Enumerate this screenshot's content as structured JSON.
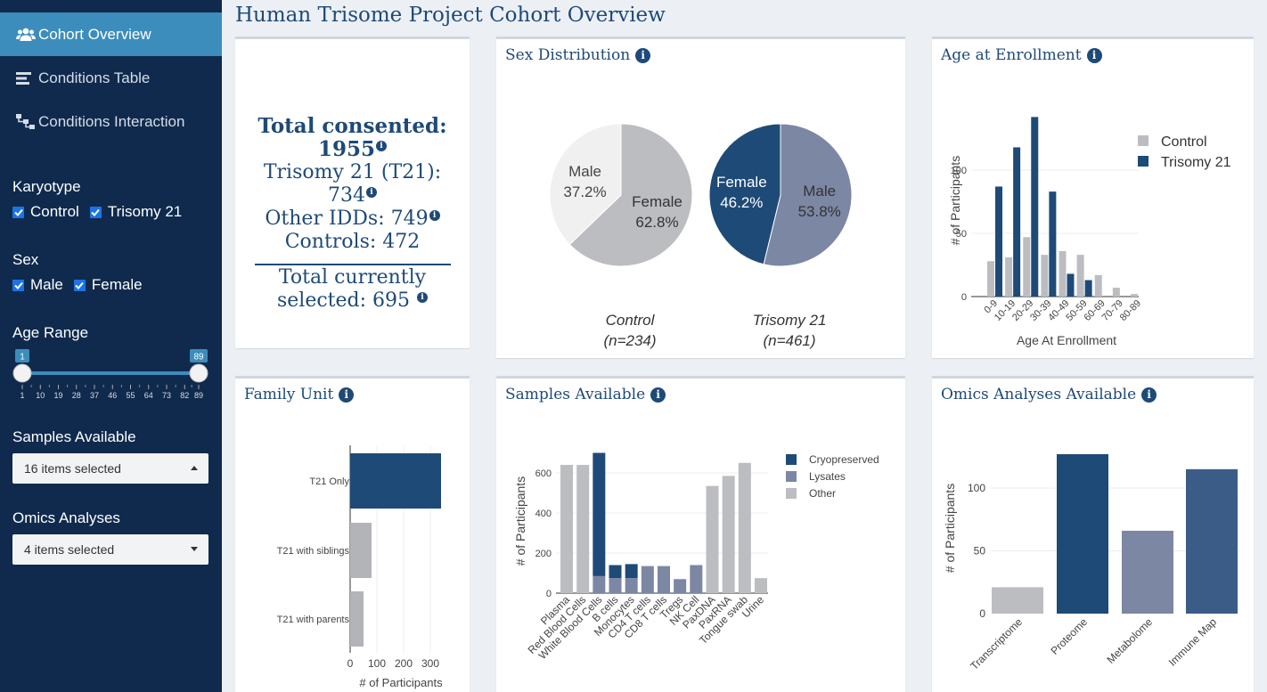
{
  "title": "Human Trisome Project Cohort Overview",
  "colors": {
    "navy": "#1e4a77",
    "slate": "#7b87a3",
    "light_gray": "#bcbdc1",
    "pale": "#f0f0f0",
    "sidebar": "#0f2a4d",
    "active": "#3c8dbc"
  },
  "sidebar": {
    "nav": [
      {
        "label": "Cohort Overview",
        "icon": "users-icon",
        "active": true
      },
      {
        "label": "Conditions Table",
        "icon": "table-icon",
        "active": false
      },
      {
        "label": "Conditions Interaction",
        "icon": "sitemap-icon",
        "active": false
      }
    ],
    "karyotype": {
      "title": "Karyotype",
      "options": [
        {
          "label": "Control",
          "checked": true
        },
        {
          "label": "Trisomy 21",
          "checked": true
        }
      ]
    },
    "sex": {
      "title": "Sex",
      "options": [
        {
          "label": "Male",
          "checked": true
        },
        {
          "label": "Female",
          "checked": true
        }
      ]
    },
    "age_range": {
      "title": "Age Range",
      "min": 1,
      "max": 89,
      "low": 1,
      "high": 89,
      "ticks": [
        "1",
        "10",
        "19",
        "28",
        "37",
        "46",
        "55",
        "64",
        "73",
        "82",
        "89"
      ]
    },
    "samples": {
      "title": "Samples Available",
      "value": "16 items selected"
    },
    "omics": {
      "title": "Omics Analyses",
      "value": "4 items selected"
    }
  },
  "summary": {
    "total_label": "Total consented:",
    "total_value": "1955",
    "t21": "Trisomy 21 (T21):",
    "t21_value": "734",
    "other": "Other IDDs: 749",
    "controls": "Controls: 472",
    "selected_label": "Total currently",
    "selected_value": "selected: 695"
  },
  "chart_data": [
    {
      "type": "pie",
      "title": "Sex Distribution",
      "pies": [
        {
          "caption": "Control",
          "n": "(n=234)",
          "slices": [
            {
              "label": "Female",
              "value": 62.8,
              "display": "62.8%"
            },
            {
              "label": "Male",
              "value": 37.2,
              "display": "37.2%"
            }
          ]
        },
        {
          "caption": "Trisomy 21",
          "n": "(n=461)",
          "slices": [
            {
              "label": "Male",
              "value": 53.8,
              "display": "53.8%"
            },
            {
              "label": "Female",
              "value": 46.2,
              "display": "46.2%"
            }
          ]
        }
      ]
    },
    {
      "type": "bar",
      "title": "Age at Enrollment",
      "categories": [
        "0-9",
        "10-19",
        "20-29",
        "30-39",
        "40-49",
        "50-59",
        "60-69",
        "70-79",
        "80-89"
      ],
      "series": [
        {
          "name": "Control",
          "values": [
            28,
            31,
            47,
            33,
            36,
            33,
            17,
            7,
            2
          ]
        },
        {
          "name": "Trisomy 21",
          "values": [
            87,
            118,
            142,
            83,
            18,
            13,
            0,
            0,
            0
          ]
        }
      ],
      "xlabel": "Age At Enrollment",
      "ylabel": "# of Participants",
      "yticks": [
        0,
        50,
        100
      ],
      "ylim": [
        0,
        150
      ]
    },
    {
      "type": "bar",
      "orientation": "horizontal",
      "title": "Family Unit",
      "categories": [
        "T21 Only",
        "T21 with siblings",
        "T21 with parents"
      ],
      "values": [
        340,
        80,
        50
      ],
      "xlabel": "# of Participants",
      "xticks": [
        0,
        100,
        200,
        300
      ],
      "xlim": [
        0,
        370
      ]
    },
    {
      "type": "bar",
      "stacked": true,
      "title": "Samples Available",
      "categories": [
        "Plasma",
        "Red Blood Cells",
        "White Blood Cells",
        "B cells",
        "Monocytes",
        "CD4 T cells",
        "CD8 T cells",
        "Tregs",
        "NK Cell",
        "PaxDNA",
        "PaxRNA",
        "Tongue swab",
        "Urine"
      ],
      "series": [
        {
          "name": "Other",
          "values": [
            640,
            640,
            0,
            0,
            0,
            0,
            0,
            0,
            0,
            535,
            585,
            650,
            75
          ]
        },
        {
          "name": "Lysates",
          "values": [
            0,
            0,
            85,
            75,
            75,
            135,
            135,
            70,
            140,
            0,
            0,
            0,
            0
          ]
        },
        {
          "name": "Cryopreserved",
          "values": [
            0,
            0,
            615,
            65,
            70,
            0,
            0,
            0,
            0,
            0,
            0,
            0,
            0
          ]
        }
      ],
      "ylabel": "# of Participants",
      "yticks": [
        0,
        200,
        400,
        600
      ],
      "ylim": [
        0,
        720
      ]
    },
    {
      "type": "bar",
      "title": "Omics Analyses Available",
      "categories": [
        "Transcriptome",
        "Proteome",
        "Metabolome",
        "Immune Map"
      ],
      "values": [
        21,
        127,
        66,
        115
      ],
      "ylabel": "# of Participants",
      "yticks": [
        0,
        50,
        100
      ],
      "ylim": [
        0,
        140
      ]
    }
  ]
}
